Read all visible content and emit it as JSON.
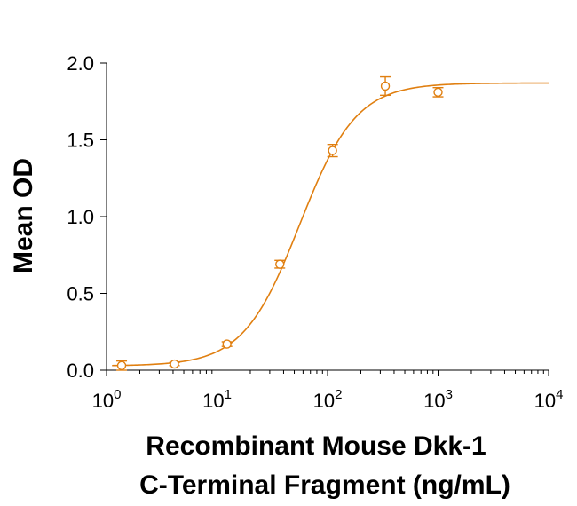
{
  "chart_data": {
    "type": "scatter",
    "title": "",
    "ylabel": "Mean OD",
    "xlabel_lines": [
      "Recombinant Mouse Dkk-1",
      "C-Terminal Fragment (ng/mL)"
    ],
    "xscale": "log",
    "xlim": [
      1,
      10000
    ],
    "ylim": [
      0,
      2.0
    ],
    "x_ticks": [
      {
        "base": "10",
        "exp": "0",
        "value": 1
      },
      {
        "base": "10",
        "exp": "1",
        "value": 10
      },
      {
        "base": "10",
        "exp": "2",
        "value": 100
      },
      {
        "base": "10",
        "exp": "3",
        "value": 1000
      },
      {
        "base": "10",
        "exp": "4",
        "value": 10000
      }
    ],
    "y_ticks": [
      {
        "label": "0.0",
        "value": 0.0
      },
      {
        "label": "0.5",
        "value": 0.5
      },
      {
        "label": "1.0",
        "value": 1.0
      },
      {
        "label": "1.5",
        "value": 1.5
      },
      {
        "label": "2.0",
        "value": 2.0
      }
    ],
    "series": [
      {
        "color": "#E07F10",
        "points": [
          {
            "x": 1.37,
            "y": 0.03,
            "err": 0.03
          },
          {
            "x": 4.12,
            "y": 0.04,
            "err": 0.01
          },
          {
            "x": 12.3,
            "y": 0.17,
            "err": 0.015
          },
          {
            "x": 37.0,
            "y": 0.69,
            "err": 0.025
          },
          {
            "x": 111,
            "y": 1.43,
            "err": 0.04
          },
          {
            "x": 333,
            "y": 1.85,
            "err": 0.06
          },
          {
            "x": 1000,
            "y": 1.81,
            "err": 0.03
          }
        ],
        "fit": {
          "bottom": 0.028,
          "top": 1.87,
          "ec50": 56,
          "hill": 1.7
        }
      }
    ],
    "grid": false,
    "legend": "none"
  }
}
